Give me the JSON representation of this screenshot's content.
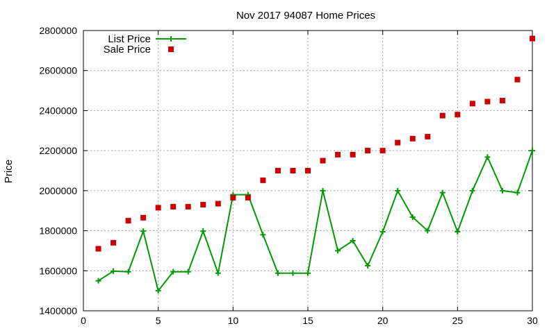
{
  "chart_data": {
    "type": "line",
    "title": "Nov 2017 94087 Home Prices",
    "xlabel": "",
    "ylabel": "Price",
    "xlim": [
      0,
      30
    ],
    "ylim": [
      1400000,
      2800000
    ],
    "xticks": [
      0,
      5,
      10,
      15,
      20,
      25,
      30
    ],
    "yticks": [
      1400000,
      1600000,
      1800000,
      2000000,
      2200000,
      2400000,
      2600000,
      2800000
    ],
    "grid": true,
    "legend_position": "top-left",
    "series": [
      {
        "name": "List Price",
        "style": "line-plus",
        "color": "#009900",
        "x": [
          1,
          2,
          3,
          4,
          5,
          6,
          7,
          8,
          9,
          10,
          11,
          12,
          13,
          14,
          15,
          16,
          17,
          18,
          19,
          20,
          21,
          22,
          23,
          24,
          25,
          26,
          27,
          28,
          29,
          30
        ],
        "y": [
          1550000,
          1598000,
          1595000,
          1798000,
          1500000,
          1595000,
          1595000,
          1798000,
          1588000,
          1980000,
          1980000,
          1780000,
          1588000,
          1588000,
          1588000,
          2000000,
          1700000,
          1750000,
          1625000,
          1795000,
          2000000,
          1868000,
          1800000,
          1990000,
          1795000,
          2000000,
          2168000,
          2000000,
          1990000,
          2200000
        ]
      },
      {
        "name": "Sale Price",
        "style": "square-points",
        "color": "#cc0000",
        "x": [
          1,
          2,
          3,
          4,
          5,
          6,
          7,
          8,
          9,
          10,
          11,
          12,
          13,
          14,
          15,
          16,
          17,
          18,
          19,
          20,
          21,
          22,
          23,
          24,
          25,
          26,
          27,
          28,
          29,
          30
        ],
        "y": [
          1710000,
          1740000,
          1850000,
          1865000,
          1915000,
          1920000,
          1920000,
          1930000,
          1935000,
          1965000,
          1965000,
          2052000,
          2100000,
          2100000,
          2100000,
          2150000,
          2180000,
          2180000,
          2200000,
          2200000,
          2240000,
          2260000,
          2270000,
          2375000,
          2380000,
          2435000,
          2445000,
          2450000,
          2555000,
          2760000
        ]
      }
    ]
  }
}
